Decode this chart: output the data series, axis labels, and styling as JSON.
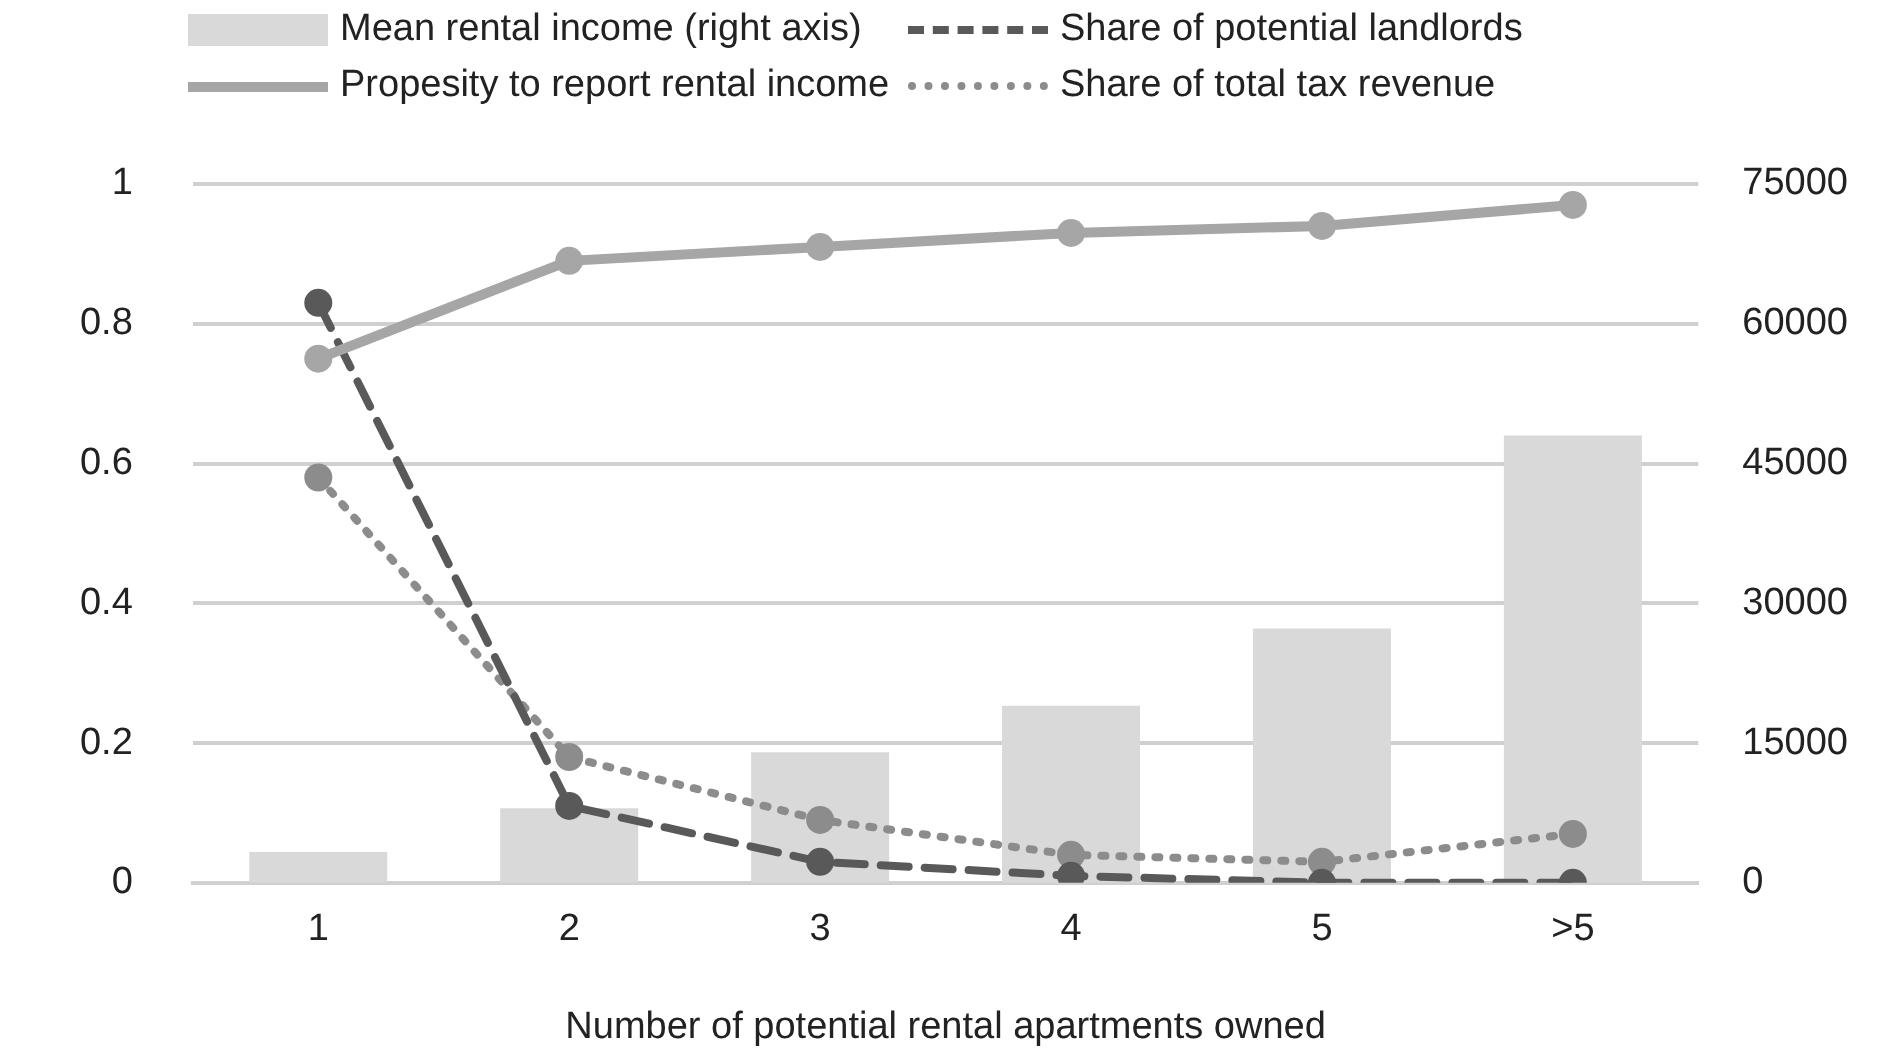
{
  "chart_data": {
    "type": "line",
    "xlabel": "Number of potential rental apartments owned",
    "categories": [
      "1",
      "2",
      "3",
      "4",
      "5",
      ">5"
    ],
    "series": [
      {
        "name": "Mean rental income (right axis)",
        "type": "bar",
        "axis": "y2",
        "color": "#d9d9d9",
        "values": [
          3300,
          8000,
          14000,
          19000,
          27300,
          48000
        ]
      },
      {
        "name": "Propesity to report rental income",
        "color": "#a6a6a6",
        "line_style": "solid",
        "values": [
          0.75,
          0.89,
          0.91,
          0.93,
          0.94,
          0.97
        ]
      },
      {
        "name": "Share of potential landlords",
        "color": "#595959",
        "line_style": "dashed",
        "values": [
          0.83,
          0.11,
          0.03,
          0.01,
          0,
          0
        ]
      },
      {
        "name": "Share of total tax revenue",
        "color": "#8c8c8c",
        "line_style": "dotted",
        "values": [
          0.58,
          0.18,
          0.09,
          0.04,
          0.03,
          0.07
        ]
      }
    ],
    "ylim": [
      0,
      1
    ],
    "yticks": [
      0,
      0.2,
      0.4,
      0.6,
      0.8,
      1
    ],
    "y2lim": [
      0,
      75000
    ],
    "y2ticks": [
      0,
      15000,
      30000,
      45000,
      60000,
      75000
    ],
    "grid": "y",
    "legend": "top",
    "marker": "circle"
  }
}
